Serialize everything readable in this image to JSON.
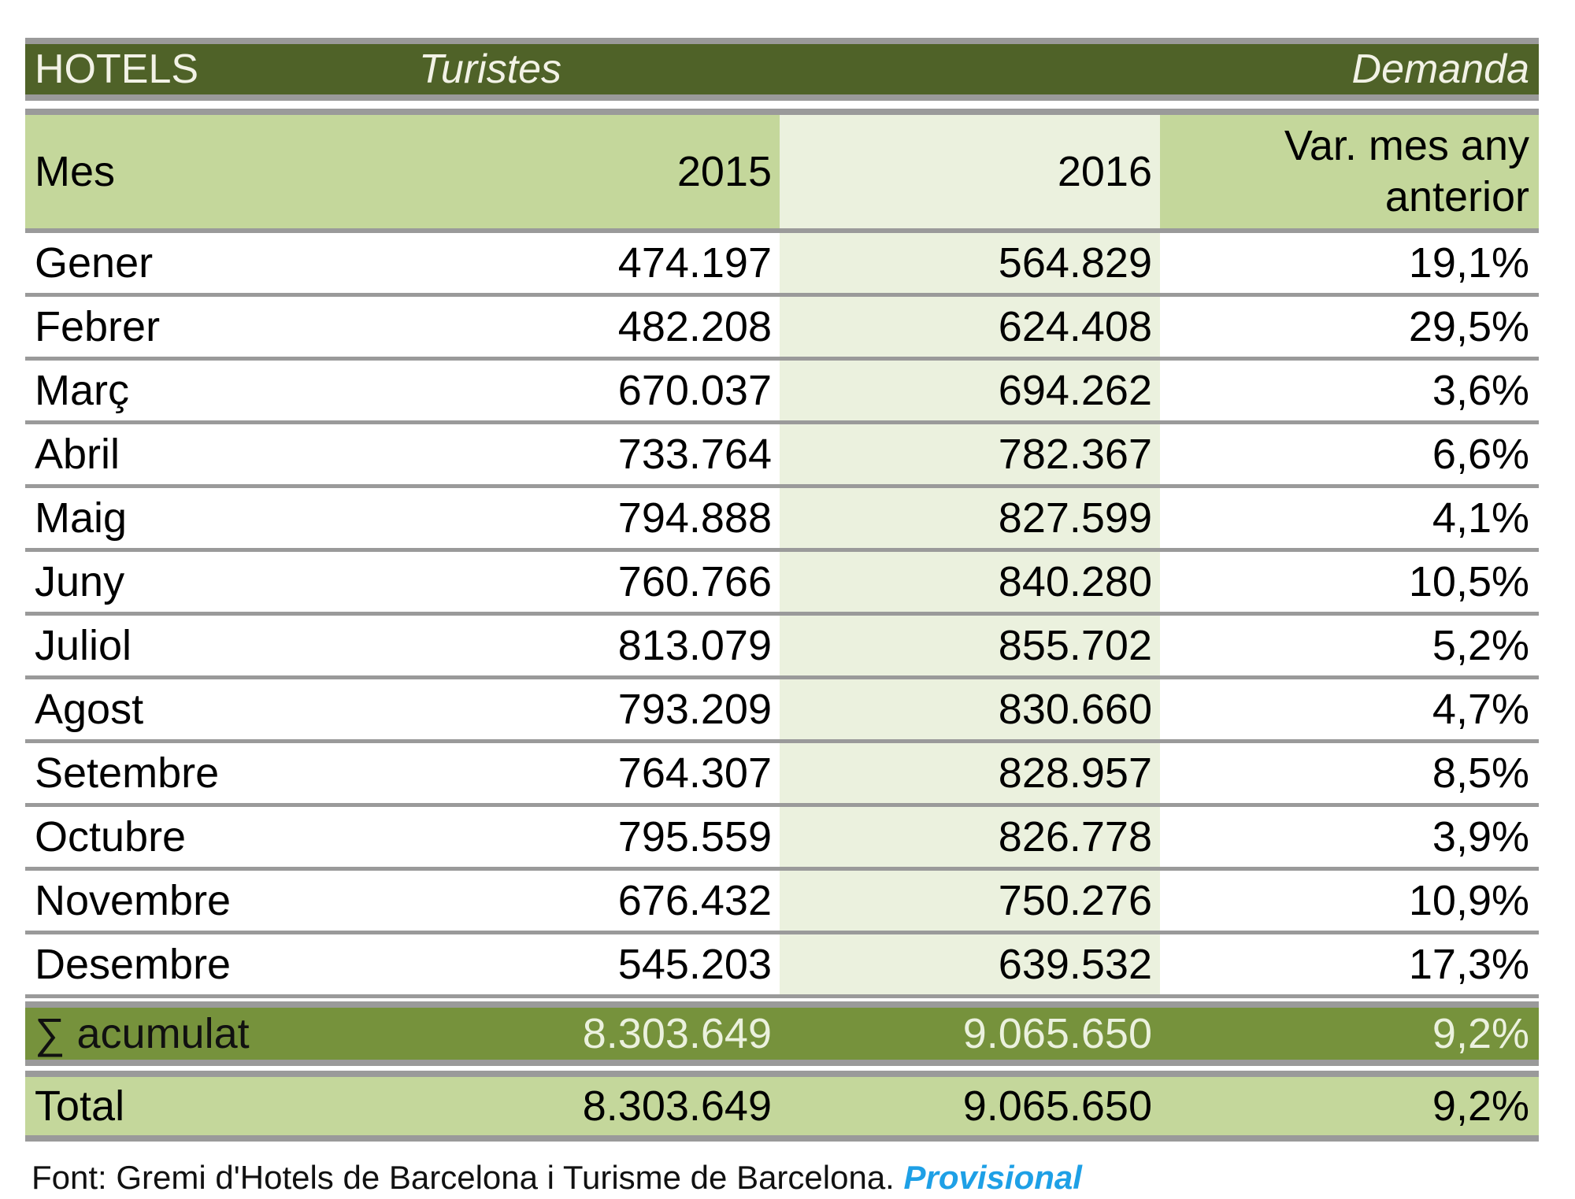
{
  "title": {
    "left": "HOTELS",
    "middle": "Turistes",
    "right": "Demanda"
  },
  "header": {
    "month": "Mes",
    "y2015": "2015",
    "y2016": "2016",
    "var_line1": "Var. mes any",
    "var_line2": "anterior"
  },
  "rows": [
    {
      "month": "Gener",
      "v2015": "474.197",
      "v2016": "564.829",
      "var": "19,1%"
    },
    {
      "month": "Febrer",
      "v2015": "482.208",
      "v2016": "624.408",
      "var": "29,5%"
    },
    {
      "month": "Març",
      "v2015": "670.037",
      "v2016": "694.262",
      "var": "3,6%"
    },
    {
      "month": "Abril",
      "v2015": "733.764",
      "v2016": "782.367",
      "var": "6,6%"
    },
    {
      "month": "Maig",
      "v2015": "794.888",
      "v2016": "827.599",
      "var": "4,1%"
    },
    {
      "month": "Juny",
      "v2015": "760.766",
      "v2016": "840.280",
      "var": "10,5%"
    },
    {
      "month": "Juliol",
      "v2015": "813.079",
      "v2016": "855.702",
      "var": "5,2%"
    },
    {
      "month": "Agost",
      "v2015": "793.209",
      "v2016": "830.660",
      "var": "4,7%"
    },
    {
      "month": "Setembre",
      "v2015": "764.307",
      "v2016": "828.957",
      "var": "8,5%"
    },
    {
      "month": "Octubre",
      "v2015": "795.559",
      "v2016": "826.778",
      "var": "3,9%"
    },
    {
      "month": "Novembre",
      "v2015": "676.432",
      "v2016": "750.276",
      "var": "10,9%"
    },
    {
      "month": "Desembre",
      "v2015": "545.203",
      "v2016": "639.532",
      "var": "17,3%"
    }
  ],
  "accumulated": {
    "label": "∑ acumulat",
    "v2015": "8.303.649",
    "v2016": "9.065.650",
    "var": "9,2%"
  },
  "total": {
    "label": "Total",
    "v2015": "8.303.649",
    "v2016": "9.065.650",
    "var": "9,2%"
  },
  "footer": {
    "source": "Font: Gremi d'Hotels de Barcelona i Turisme de Barcelona.",
    "note": "Provisional"
  },
  "colors": {
    "title_bg": "#4f6228",
    "header_bg": "#c4d79b",
    "column_2016_bg": "#ebf1de",
    "accumulated_bg": "#76923c",
    "note": "#1ea0e6"
  }
}
